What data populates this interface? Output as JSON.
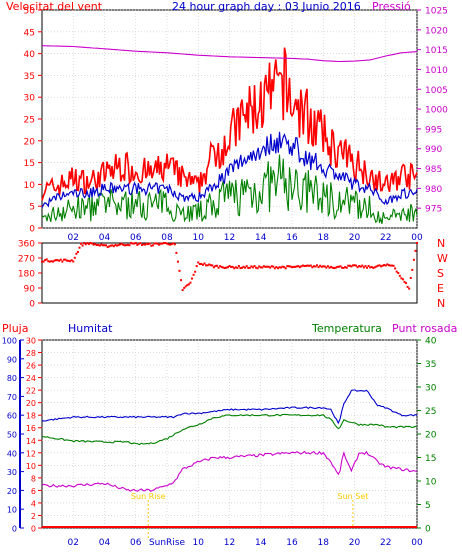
{
  "chart_data": [
    {
      "type": "line",
      "title": "24 hour graph day : 03 Junio 2016",
      "left_label": "Velocitat del vent",
      "right_label": "Pressió",
      "x_ticks": [
        "02",
        "04",
        "06",
        "08",
        "10",
        "12",
        "14",
        "16",
        "18",
        "20",
        "22",
        "00"
      ],
      "ylim_left": [
        0,
        50
      ],
      "yticks_left": [
        "0",
        "5",
        "10",
        "15",
        "20",
        "25",
        "30",
        "35",
        "40",
        "45",
        "50"
      ],
      "ylim_right": [
        970,
        1025
      ],
      "yticks_right": [
        "975",
        "980",
        "985",
        "990",
        "995",
        "1000",
        "1005",
        "1010",
        "1015",
        "1020",
        "1025"
      ],
      "colors": {
        "gust": "#ff0000",
        "avg_speed": "#0000cc",
        "min_speed": "#008000",
        "pressure": "#cc00cc"
      },
      "pressure_x": [
        0,
        2,
        4,
        6,
        8,
        10,
        12,
        14,
        16,
        17,
        18,
        19,
        20,
        21,
        22,
        23,
        24
      ],
      "pressure": [
        1016,
        1015.8,
        1015.2,
        1014.6,
        1014.2,
        1013.6,
        1013.2,
        1013.0,
        1012.8,
        1012.6,
        1012.2,
        1012.0,
        1012.1,
        1012.4,
        1013.4,
        1014.2,
        1014.5
      ],
      "gust_x": [
        0,
        1,
        2,
        3,
        4,
        5,
        6,
        7,
        8,
        9,
        10,
        11,
        12,
        13,
        14,
        15,
        15.5,
        16,
        17,
        18,
        19,
        20,
        21,
        22,
        23,
        24
      ],
      "gust": [
        9,
        10,
        12,
        11,
        13,
        15,
        14,
        13,
        15,
        12,
        10,
        18,
        22,
        27,
        30,
        33,
        35,
        30,
        27,
        22,
        18,
        16,
        13,
        10,
        13,
        12
      ],
      "avg_speed": [
        5,
        7,
        8,
        8,
        9,
        9,
        9,
        9,
        9,
        7,
        7,
        10,
        13,
        16,
        18,
        20,
        20,
        19,
        16,
        14,
        12,
        10,
        9,
        6,
        8,
        8
      ],
      "min_speed": [
        2,
        4,
        5,
        5,
        6,
        6,
        6,
        6,
        6,
        4,
        4,
        6,
        8,
        9,
        10,
        11,
        12,
        10,
        9,
        8,
        7,
        6,
        5,
        2,
        4,
        4
      ]
    },
    {
      "type": "scatter",
      "title": "",
      "yticks": [
        "0",
        "90",
        "180",
        "270",
        "360"
      ],
      "ylim": [
        0,
        360
      ],
      "right_labels": [
        "N",
        "W",
        "S",
        "E",
        "N"
      ],
      "color": "#ff0000",
      "x": [
        0,
        1,
        2,
        2.5,
        3,
        4,
        5,
        6,
        7,
        8,
        8.5,
        9,
        9.5,
        10,
        11,
        12,
        13,
        14,
        15,
        16,
        17,
        18,
        19,
        20,
        21,
        22,
        22.5,
        23,
        23.5,
        24
      ],
      "direction": [
        255,
        255,
        255,
        350,
        360,
        340,
        350,
        355,
        350,
        360,
        350,
        80,
        120,
        240,
        220,
        215,
        215,
        215,
        215,
        215,
        220,
        220,
        215,
        220,
        215,
        225,
        225,
        150,
        90,
        370
      ]
    },
    {
      "type": "line",
      "title": "",
      "legend": [
        "Pluja",
        "Humitat",
        "Temperatura",
        "Punt rosada"
      ],
      "colors": {
        "rain": "#ff0000",
        "humidity": "#0000cc",
        "temperature": "#008000",
        "dewpoint": "#cc00cc"
      },
      "x_ticks": [
        "02",
        "04",
        "06",
        "SunRise",
        "10",
        "12",
        "14",
        "16",
        "18",
        "20",
        "22",
        "00"
      ],
      "yticks_humidity": [
        "0",
        "10",
        "20",
        "30",
        "40",
        "50",
        "60",
        "70",
        "80",
        "90",
        "100"
      ],
      "yticks_rain": [
        "0",
        "2",
        "4",
        "6",
        "8",
        "10",
        "12",
        "14",
        "16",
        "18",
        "20",
        "22",
        "24",
        "26",
        "28",
        "30"
      ],
      "yticks_temperature": [
        "0",
        "5",
        "10",
        "15",
        "20",
        "25",
        "30",
        "35",
        "40"
      ],
      "annotations": [
        "Sun Rise",
        "Sun Set"
      ],
      "x": [
        0,
        2,
        4,
        5.5,
        6,
        7,
        8,
        8.5,
        9,
        10,
        11,
        12,
        14,
        16,
        18,
        18.5,
        19,
        19.3,
        19.8,
        20.3,
        20.8,
        21.5,
        22,
        23,
        24
      ],
      "humidity": [
        57,
        59,
        59,
        59,
        59,
        59,
        59,
        59,
        61,
        61,
        62,
        63,
        63,
        64,
        64,
        63,
        55,
        66,
        73,
        73,
        73,
        65,
        64,
        60,
        60
      ],
      "temperature": [
        19.5,
        18.5,
        18.3,
        18.3,
        17.8,
        18,
        19,
        20,
        21,
        22,
        23.5,
        24,
        24,
        24,
        24,
        23,
        21,
        23,
        22.5,
        22,
        22,
        22,
        21.5,
        21.5,
        21.5
      ],
      "dewpoint": [
        9,
        9,
        9.5,
        8,
        8,
        8,
        9,
        10,
        12.5,
        14,
        15,
        15,
        15.5,
        16,
        16,
        14,
        11,
        16,
        12,
        16,
        16,
        14,
        13,
        12.5,
        12
      ],
      "rain": [
        0,
        0,
        0,
        0,
        0,
        0,
        0,
        0,
        0,
        0,
        0,
        0,
        0,
        0,
        0,
        0,
        0,
        0,
        0,
        0,
        0,
        0,
        0,
        0,
        0
      ]
    }
  ]
}
